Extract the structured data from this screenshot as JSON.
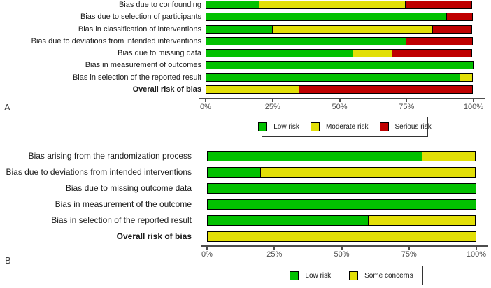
{
  "figure": {
    "panel_a_label": "A",
    "panel_b_label": "B"
  },
  "chart_data": [
    {
      "type": "bar",
      "stacked": true,
      "orientation": "horizontal",
      "panel_label": "A",
      "categories": [
        "Bias due to confounding",
        "Bias due to selection of participants",
        "Bias in classification of interventions",
        "Bias due to deviations from intended interventions",
        "Bias due to missing data",
        "Bias in measurement of outcomes",
        "Bias in selection of the reported result",
        "Overall risk of bias"
      ],
      "bold_categories": [
        "Overall risk of bias"
      ],
      "series": [
        {
          "name": "Low risk",
          "color": "#02C100",
          "values": [
            20,
            90,
            25,
            75,
            55,
            100,
            95,
            0
          ]
        },
        {
          "name": "Moderate risk",
          "color": "#E2DF07",
          "values": [
            55,
            0,
            60,
            0,
            15,
            0,
            5,
            35
          ]
        },
        {
          "name": "Serious risk",
          "color": "#BF0000",
          "values": [
            25,
            10,
            15,
            25,
            30,
            0,
            0,
            65
          ]
        }
      ],
      "xlim": [
        0,
        100
      ],
      "x_ticks": [
        {
          "value": 0,
          "label": "0%"
        },
        {
          "value": 25,
          "label": "25%"
        },
        {
          "value": 50,
          "label": "50%"
        },
        {
          "value": 75,
          "label": "75%"
        },
        {
          "value": 100,
          "label": "100%"
        }
      ],
      "grid": false,
      "legend_position": "bottom"
    },
    {
      "type": "bar",
      "stacked": true,
      "orientation": "horizontal",
      "panel_label": "B",
      "categories": [
        "Bias arising from the randomization process",
        "Bias due to deviations from intended interventions",
        "Bias due to missing outcome data",
        "Bias in measurement of the outcome",
        "Bias in selection of the reported result",
        "Overall risk of bias"
      ],
      "bold_categories": [
        "Overall risk of bias"
      ],
      "series": [
        {
          "name": "Low risk",
          "color": "#02C100",
          "values": [
            80,
            20,
            100,
            100,
            60,
            0
          ]
        },
        {
          "name": "Some concerns",
          "color": "#E2DF07",
          "values": [
            20,
            80,
            0,
            0,
            40,
            100
          ]
        }
      ],
      "xlim": [
        0,
        100
      ],
      "x_ticks": [
        {
          "value": 0,
          "label": "0%"
        },
        {
          "value": 25,
          "label": "25%"
        },
        {
          "value": 50,
          "label": "50%"
        },
        {
          "value": 75,
          "label": "75%"
        },
        {
          "value": 100,
          "label": "100%"
        }
      ],
      "grid": false,
      "legend_position": "bottom"
    }
  ]
}
